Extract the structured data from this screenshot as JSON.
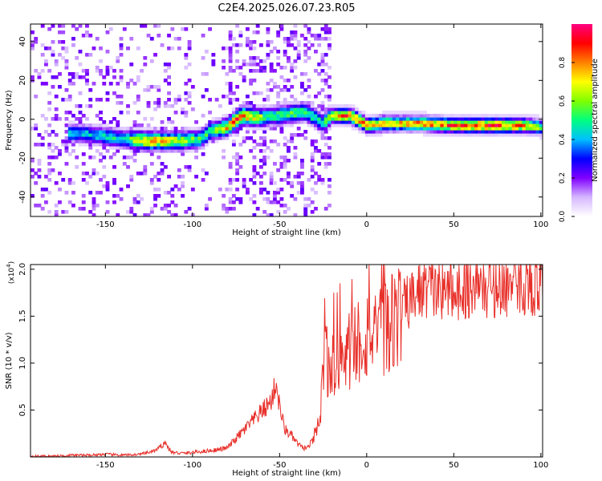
{
  "figure_title": "C2E4.2025.026.07.23.R05",
  "chart_data": [
    {
      "type": "heatmap",
      "xlabel": "Height of straight line (km)",
      "ylabel": "Frequency (Hz)",
      "xlim": [
        -193,
        101
      ],
      "ylim": [
        -50,
        49
      ],
      "x_ticks": [
        -150,
        -100,
        -50,
        0,
        50,
        100
      ],
      "y_ticks": [
        -40,
        -20,
        0,
        20,
        40
      ],
      "colorbar": {
        "label": "Normalized spectral amplitude",
        "range": [
          0,
          1
        ],
        "ticks": [
          0.0,
          0.2,
          0.4,
          0.6,
          0.8
        ],
        "tick_labels": [
          "0.0",
          "0.2",
          "0.4",
          "0.6",
          "0.8"
        ],
        "colors": [
          "#ffffff",
          "#d6b8ff",
          "#8000ff",
          "#0000ff",
          "#00c0ff",
          "#00ff80",
          "#80ff00",
          "#ffff00",
          "#ff8000",
          "#ff0000",
          "#ff0080"
        ]
      },
      "ridge": [
        {
          "x": -170,
          "f": -7
        },
        {
          "x": -155,
          "f": -8
        },
        {
          "x": -140,
          "f": -10
        },
        {
          "x": -125,
          "f": -11
        },
        {
          "x": -110,
          "f": -11
        },
        {
          "x": -95,
          "f": -10
        },
        {
          "x": -90,
          "f": -6
        },
        {
          "x": -80,
          "f": -4
        },
        {
          "x": -72,
          "f": 2
        },
        {
          "x": -60,
          "f": 1
        },
        {
          "x": -45,
          "f": 3
        },
        {
          "x": -35,
          "f": 4
        },
        {
          "x": -25,
          "f": -2
        },
        {
          "x": -20,
          "f": 2
        },
        {
          "x": -10,
          "f": 2
        },
        {
          "x": -5,
          "f": 0
        },
        {
          "x": 0,
          "f": -3
        },
        {
          "x": 10,
          "f": -2
        },
        {
          "x": 30,
          "f": -2
        },
        {
          "x": 50,
          "f": -3
        },
        {
          "x": 70,
          "f": -3
        },
        {
          "x": 90,
          "f": -3
        },
        {
          "x": 101,
          "f": -4
        }
      ],
      "ridge_amplitude": [
        {
          "x": -170,
          "a": 0.45
        },
        {
          "x": -140,
          "a": 0.5
        },
        {
          "x": -125,
          "a": 0.85
        },
        {
          "x": -100,
          "a": 0.6
        },
        {
          "x": -90,
          "a": 0.55
        },
        {
          "x": -75,
          "a": 0.9
        },
        {
          "x": -55,
          "a": 0.55
        },
        {
          "x": -40,
          "a": 0.6
        },
        {
          "x": -25,
          "a": 0.5
        },
        {
          "x": -15,
          "a": 0.95
        },
        {
          "x": 0,
          "a": 0.85
        },
        {
          "x": 20,
          "a": 0.8
        },
        {
          "x": 50,
          "a": 0.9
        },
        {
          "x": 70,
          "a": 0.95
        },
        {
          "x": 90,
          "a": 0.85
        },
        {
          "x": 101,
          "a": 0.6
        }
      ]
    },
    {
      "type": "line",
      "xlabel": "Height of straight line (km)",
      "ylabel": "SNR (10 * v/v)",
      "y_scale_label": "(x10",
      "y_scale_exponent": "4",
      "xlim": [
        -193,
        101
      ],
      "ylim": [
        0,
        2.05
      ],
      "x_ticks": [
        -150,
        -100,
        -50,
        0,
        50,
        100
      ],
      "y_ticks": [
        0.5,
        1.0,
        1.5,
        2.0
      ],
      "y_tick_labels": [
        "0.5",
        "1.0",
        "1.5",
        "2.0"
      ],
      "line_color": "#e8302a",
      "series": [
        {
          "x": [
            -193,
            -180,
            -170,
            -160,
            -150,
            -140,
            -130,
            -125,
            -120,
            -116,
            -112,
            -105,
            -100,
            -95,
            -90,
            -85,
            -80,
            -75,
            -70,
            -65,
            -60,
            -55,
            -52,
            -50,
            -47,
            -44,
            -40,
            -37,
            -34,
            -30,
            -27,
            -25,
            -23,
            -21,
            -20,
            -18,
            -15,
            -12,
            -10,
            -5,
            0,
            3,
            6,
            10,
            13,
            15,
            20,
            25,
            30,
            35,
            40,
            50,
            60,
            70,
            80,
            90,
            95,
            100
          ],
          "values": [
            0.01,
            0.01,
            0.02,
            0.02,
            0.03,
            0.02,
            0.03,
            0.05,
            0.08,
            0.16,
            0.05,
            0.04,
            0.05,
            0.06,
            0.07,
            0.08,
            0.1,
            0.2,
            0.3,
            0.4,
            0.5,
            0.6,
            0.8,
            0.55,
            0.3,
            0.25,
            0.15,
            0.1,
            0.1,
            0.2,
            0.4,
            0.9,
            1.1,
            0.9,
            1.2,
            0.9,
            1.1,
            1.0,
            1.2,
            1.3,
            1.35,
            1.45,
            1.2,
            1.5,
            1.4,
            1.55,
            1.6,
            1.7,
            1.8,
            1.85,
            1.8,
            1.82,
            1.85,
            1.85,
            1.85,
            1.88,
            1.88,
            1.85
          ]
        }
      ]
    }
  ]
}
